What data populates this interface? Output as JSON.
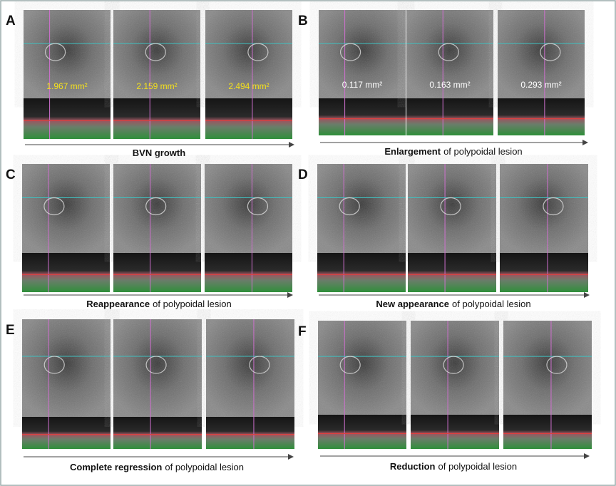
{
  "panels": [
    {
      "letter": "A",
      "labels": [
        "1.967 mm²",
        "2.159 mm²",
        "2.494 mm²"
      ],
      "caption": {
        "bold": "BVN growth"
      }
    },
    {
      "letter": "B",
      "labels": [
        "0.117 mm²",
        "0.163 mm²",
        "0.293 mm²"
      ],
      "caption": {
        "bold": "Enlargement",
        "rest": "of polypoidal lesion"
      }
    },
    {
      "letter": "C",
      "caption": {
        "bold": "Reappearance",
        "rest": "of polypoidal lesion"
      }
    },
    {
      "letter": "D",
      "caption": {
        "bold": "New appearance",
        "rest": "of polypoidal lesion"
      }
    },
    {
      "letter": "E",
      "caption": {
        "bold": "Complete regression",
        "rest": "of polypoidal lesion"
      }
    },
    {
      "letter": "F",
      "caption": {
        "bold": "Reduction",
        "rest": "of polypoidal lesion"
      }
    }
  ]
}
